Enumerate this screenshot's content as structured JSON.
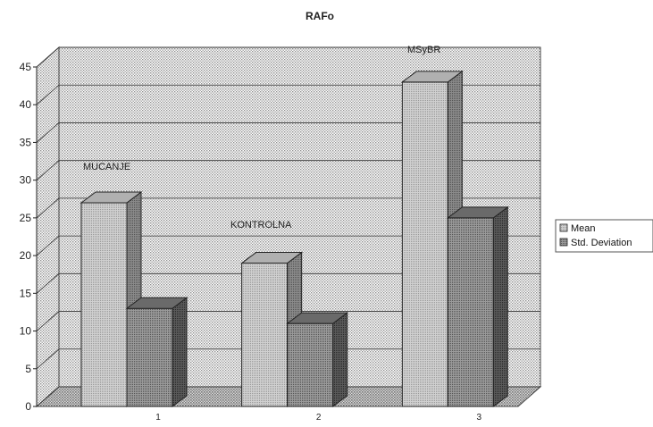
{
  "chart_data": {
    "type": "bar",
    "title": "RAFo",
    "categories": [
      "1",
      "2",
      "3"
    ],
    "series": [
      {
        "name": "Mean",
        "values": [
          27,
          19,
          43
        ]
      },
      {
        "name": "Std. Deviation",
        "values": [
          13,
          11,
          25
        ]
      }
    ],
    "annotations": [
      "MUCANJE",
      "KONTROLNA",
      "MSyBR"
    ],
    "ylim": [
      0,
      45
    ],
    "yticks": [
      0,
      5,
      10,
      15,
      20,
      25,
      30,
      35,
      40,
      45
    ],
    "grid": true,
    "legend_position": "right",
    "style": "3d"
  },
  "colors": {
    "wall_dots": "#9a9a9a",
    "floor_dots": "#8a8a8a",
    "mean_front": "#c8c8c8",
    "mean_side": "#7a7a7a",
    "std_front": "#8a8a8a",
    "std_side": "#4a4a4a"
  }
}
